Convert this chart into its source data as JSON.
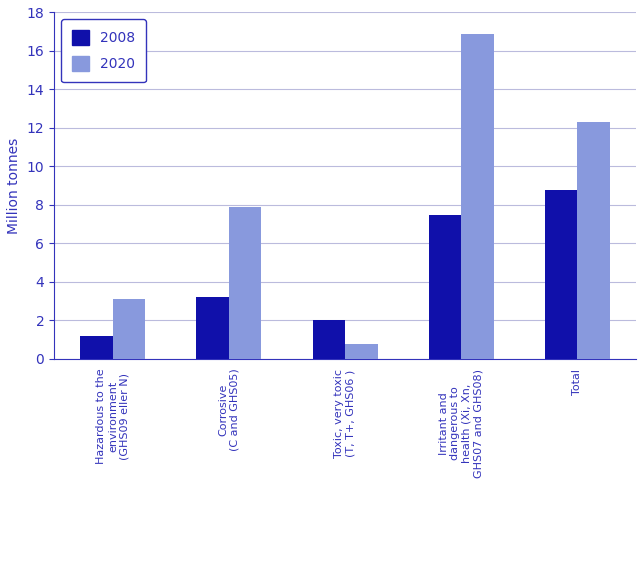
{
  "categories": [
    "Hazardous to the\nenvironment\n(GHS09 eller N)",
    "Corrosive\n(C and GHS05)",
    "Toxic, very toxic\n(T, T+, GHS06 )",
    "Irritant and\ndangerous to\nhealth (Xi, Xn,\nGHS07 and GHS08)",
    "Total"
  ],
  "values_2008": [
    1.2,
    3.2,
    2.0,
    7.5,
    8.8
  ],
  "values_2020": [
    3.1,
    7.9,
    0.8,
    16.9,
    12.3
  ],
  "color_2008": "#1010AA",
  "color_2020": "#8899DD",
  "ylabel": "Million tonnes",
  "ylim": [
    0,
    18
  ],
  "yticks": [
    0,
    2,
    4,
    6,
    8,
    10,
    12,
    14,
    16,
    18
  ],
  "legend_labels": [
    "2008",
    "2020"
  ],
  "bar_width": 0.28,
  "grid_color": "#BBBBDD",
  "spine_color": "#3333BB",
  "tick_color": "#3333BB",
  "label_color": "#3333BB",
  "ylabel_color": "#3333BB"
}
